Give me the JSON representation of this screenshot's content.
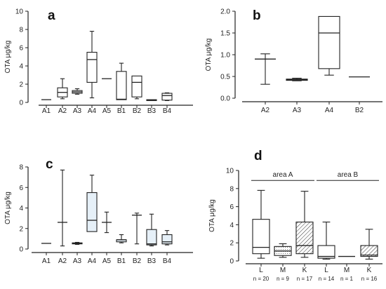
{
  "chart_data": [
    {
      "panel": "a",
      "type": "boxplot",
      "ylabel": "OTA μg/kg",
      "ylim": [
        0,
        10
      ],
      "yticks": [
        0,
        2,
        4,
        6,
        8,
        10
      ],
      "fill": "#ffffff",
      "categories": [
        "A1",
        "A2",
        "A3",
        "A4",
        "A5",
        "B1",
        "B2",
        "B3",
        "B4"
      ],
      "boxes": [
        {
          "min": 0.3,
          "q1": 0.3,
          "median": 0.3,
          "q3": 0.3,
          "max": 0.3
        },
        {
          "min": 0.4,
          "q1": 0.6,
          "median": 1.1,
          "q3": 1.6,
          "max": 2.6
        },
        {
          "min": 0.9,
          "q1": 1.0,
          "median": 1.15,
          "q3": 1.3,
          "max": 1.5
        },
        {
          "min": 0.5,
          "q1": 2.2,
          "median": 4.7,
          "q3": 5.5,
          "max": 7.8
        },
        {
          "min": 2.6,
          "q1": 2.6,
          "median": 2.6,
          "q3": 2.6,
          "max": 2.6
        },
        {
          "min": 0.3,
          "q1": 0.3,
          "median": 0.35,
          "q3": 3.4,
          "max": 4.3
        },
        {
          "min": 0.4,
          "q1": 0.6,
          "median": 2.2,
          "q3": 2.9,
          "max": 2.9
        },
        {
          "min": 0.2,
          "q1": 0.2,
          "median": 0.25,
          "q3": 0.3,
          "max": 0.3
        },
        {
          "min": 0.2,
          "q1": 0.25,
          "median": 0.75,
          "q3": 1.0,
          "max": 1.05
        }
      ]
    },
    {
      "panel": "b",
      "type": "boxplot",
      "ylabel": "OTA μg/kg",
      "ylim": [
        0,
        2.0
      ],
      "yticks": [
        0.0,
        0.5,
        1.0,
        1.5,
        2.0
      ],
      "fill": "#ffffff",
      "categories": [
        "A2",
        "A3",
        "A4",
        "B2"
      ],
      "boxes": [
        {
          "min": 0.32,
          "q1": 0.9,
          "median": 0.9,
          "q3": 0.9,
          "max": 1.02
        },
        {
          "min": 0.4,
          "q1": 0.41,
          "median": 0.43,
          "q3": 0.44,
          "max": 0.46
        },
        {
          "min": 0.53,
          "q1": 0.68,
          "median": 1.5,
          "q3": 1.88,
          "max": 1.88
        },
        {
          "min": 0.49,
          "q1": 0.49,
          "median": 0.49,
          "q3": 0.49,
          "max": 0.49
        }
      ]
    },
    {
      "panel": "c",
      "type": "boxplot",
      "ylabel": "OTA μg/kg",
      "ylim": [
        0,
        8
      ],
      "yticks": [
        0,
        2,
        4,
        6,
        8
      ],
      "fill": "#e6f0f8",
      "categories": [
        "A1",
        "A2",
        "A3",
        "A4",
        "A5",
        "B1",
        "B2",
        "B3",
        "B4"
      ],
      "boxes": [
        {
          "min": 0.55,
          "q1": 0.55,
          "median": 0.55,
          "q3": 0.55,
          "max": 0.55
        },
        {
          "min": 0.3,
          "q1": 2.6,
          "median": 2.6,
          "q3": 2.6,
          "max": 7.7
        },
        {
          "min": 0.45,
          "q1": 0.5,
          "median": 0.55,
          "q3": 0.6,
          "max": 0.65
        },
        {
          "min": 1.7,
          "q1": 1.7,
          "median": 2.8,
          "q3": 5.5,
          "max": 7.2
        },
        {
          "min": 1.6,
          "q1": 2.6,
          "median": 2.6,
          "q3": 2.6,
          "max": 3.6
        },
        {
          "min": 0.6,
          "q1": 0.7,
          "median": 0.9,
          "q3": 0.9,
          "max": 1.4
        },
        {
          "min": 0.5,
          "q1": 3.3,
          "median": 3.3,
          "q3": 3.3,
          "max": 3.5
        },
        {
          "min": 0.3,
          "q1": 0.4,
          "median": 0.5,
          "q3": 1.9,
          "max": 3.4
        },
        {
          "min": 0.4,
          "q1": 0.5,
          "median": 0.7,
          "q3": 1.4,
          "max": 1.8
        }
      ]
    },
    {
      "panel": "d",
      "type": "boxplot",
      "ylabel": "OTA μg/kg",
      "ylim": [
        0,
        10
      ],
      "yticks": [
        0,
        2,
        4,
        6,
        8,
        10
      ],
      "groups": [
        {
          "label": "area A",
          "indices": [
            0,
            1,
            2
          ]
        },
        {
          "label": "area B",
          "indices": [
            3,
            4,
            5
          ]
        }
      ],
      "categories": [
        "L",
        "M",
        "K",
        "L",
        "M",
        "K"
      ],
      "n_labels": [
        "n = 20",
        "n = 9",
        "n = 17",
        "n = 14",
        "n = 1",
        "n = 16"
      ],
      "fills": [
        "white",
        "dotted",
        "hatched",
        "white",
        "dotted",
        "hatched"
      ],
      "boxes": [
        {
          "min": 0.3,
          "q1": 0.8,
          "median": 1.5,
          "q3": 4.6,
          "max": 7.8
        },
        {
          "min": 0.4,
          "q1": 0.6,
          "median": 1.1,
          "q3": 1.6,
          "max": 1.9
        },
        {
          "min": 0.4,
          "q1": 0.8,
          "median": 1.7,
          "q3": 4.3,
          "max": 7.7
        },
        {
          "min": 0.2,
          "q1": 0.3,
          "median": 0.5,
          "q3": 1.7,
          "max": 4.3
        },
        {
          "min": 0.5,
          "q1": 0.5,
          "median": 0.5,
          "q3": 0.5,
          "max": 0.5
        },
        {
          "min": 0.2,
          "q1": 0.5,
          "median": 0.65,
          "q3": 1.7,
          "max": 3.5
        }
      ]
    }
  ]
}
